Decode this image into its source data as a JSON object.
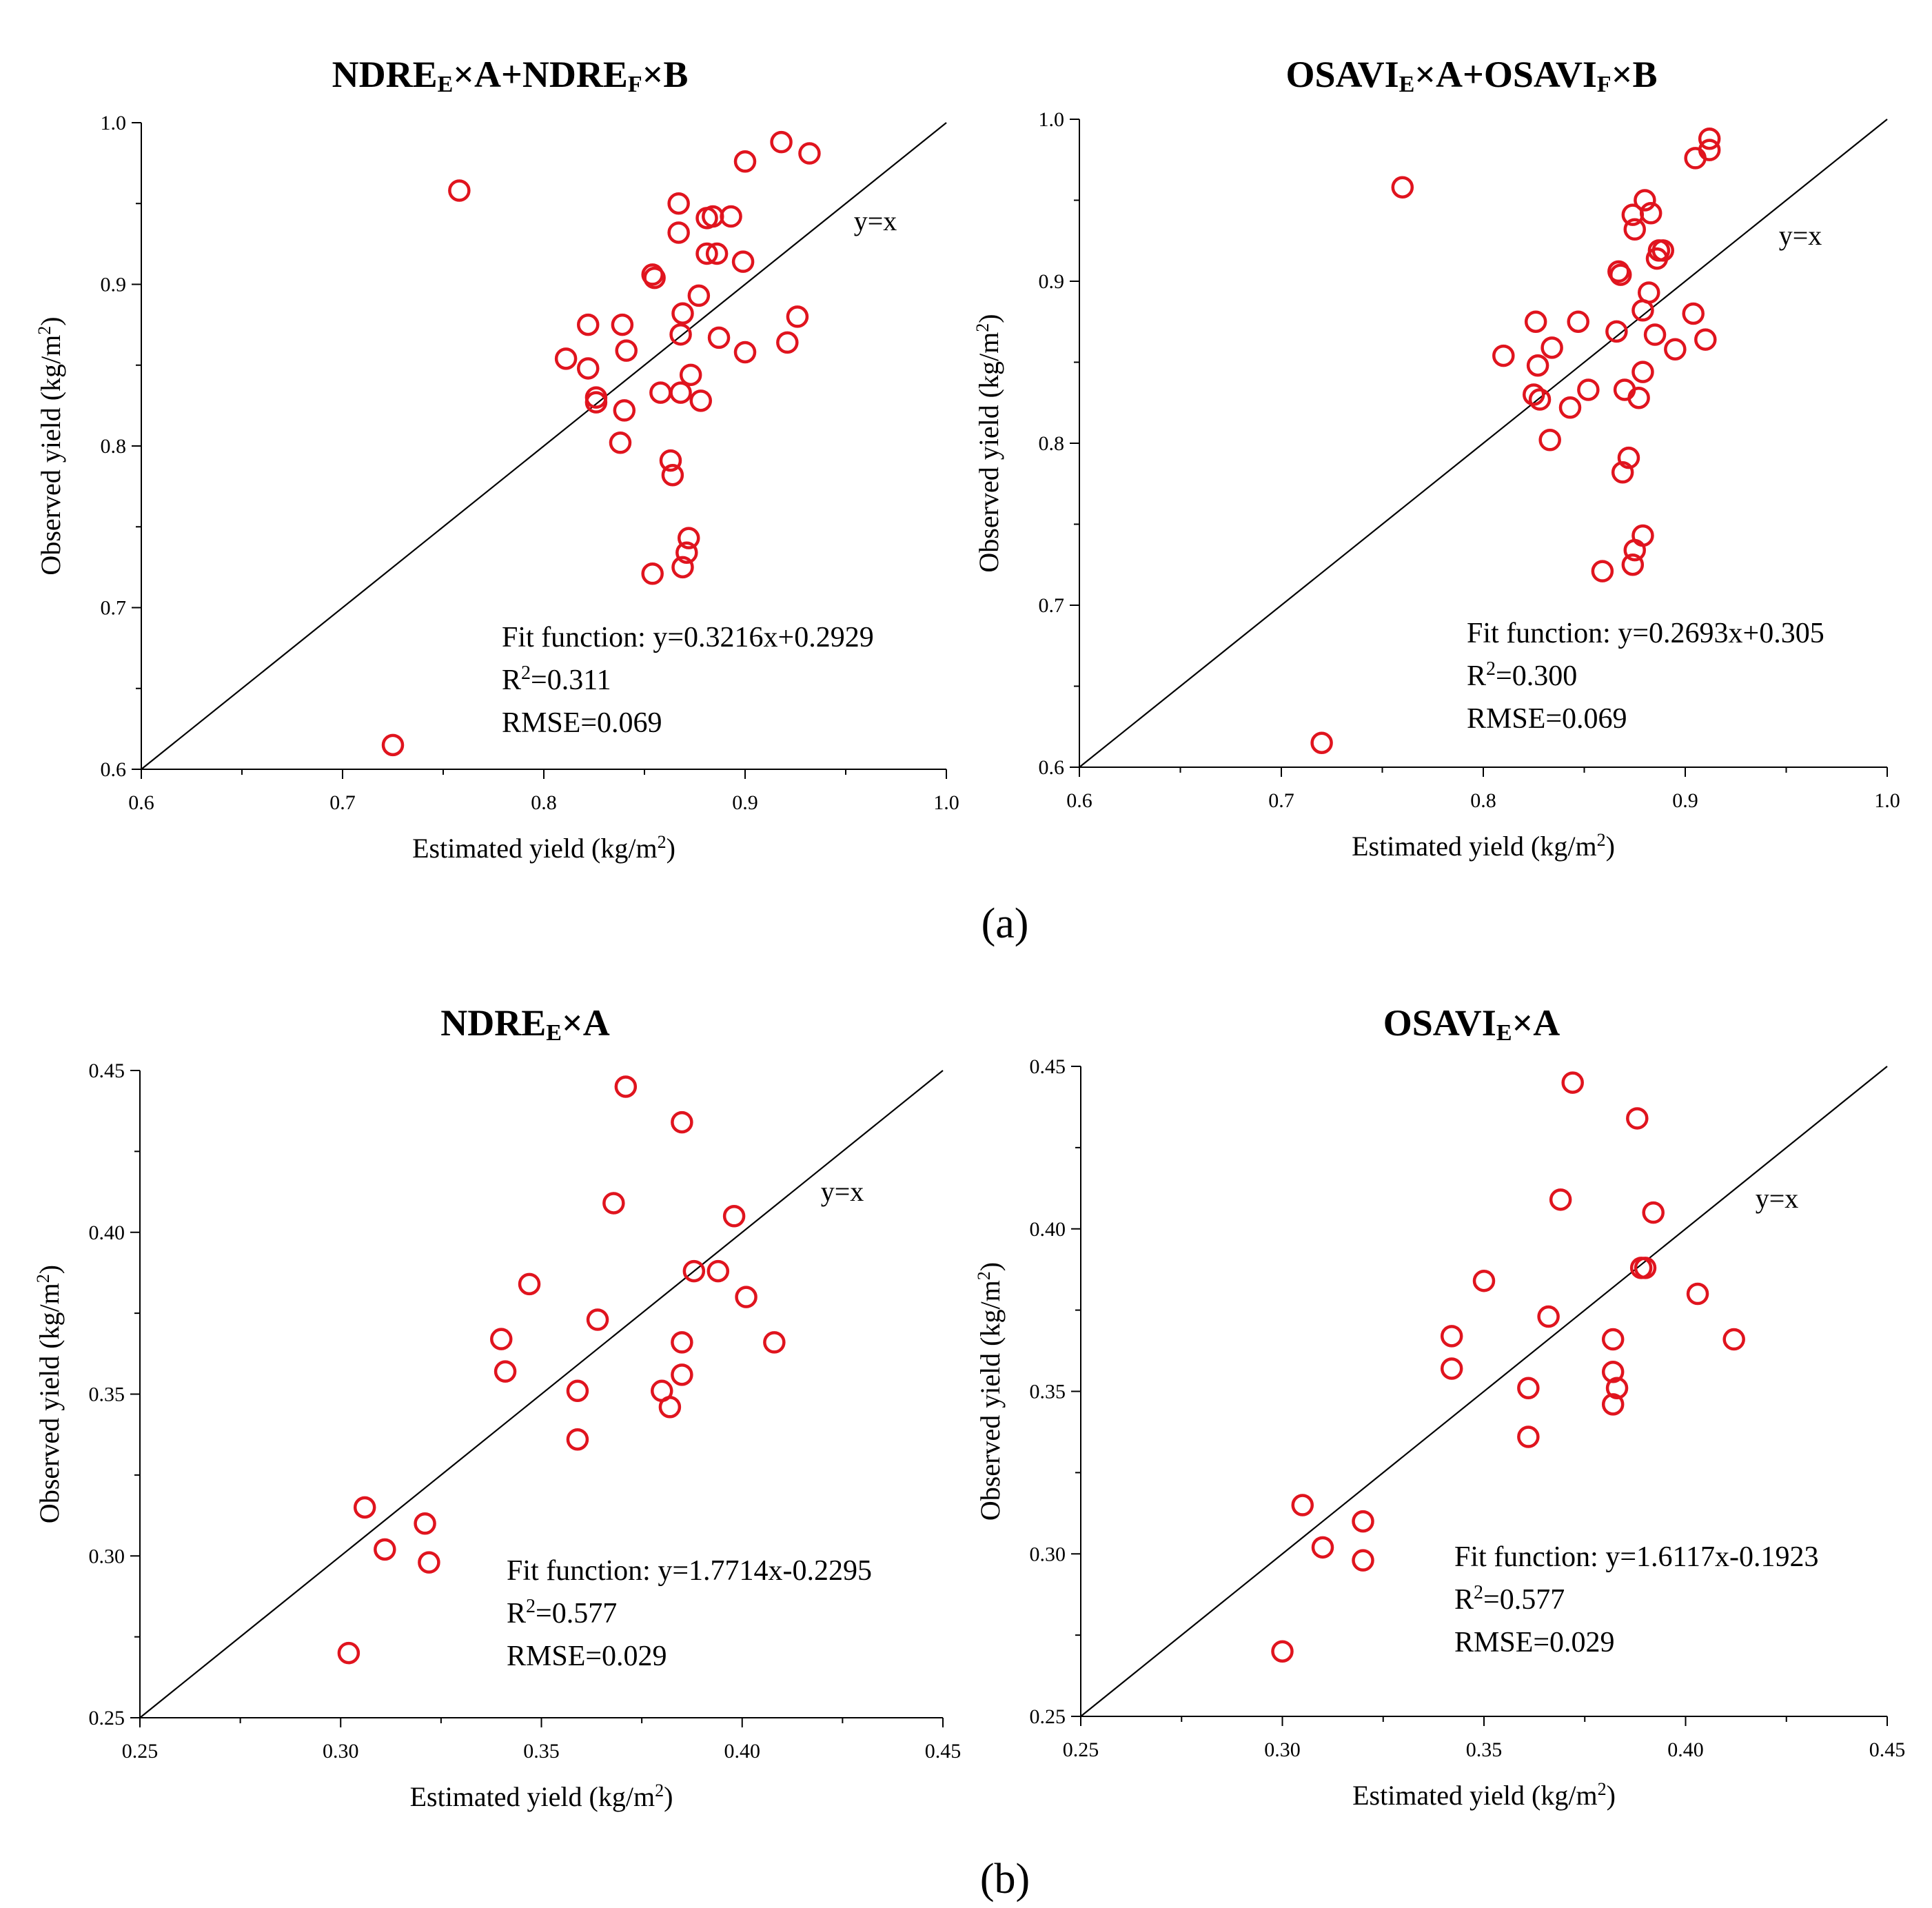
{
  "captions": {
    "a": "(a)",
    "b": "(b)"
  },
  "chart_data": [
    {
      "id": "c1",
      "type": "scatter",
      "title": {
        "main": "NDRE",
        "parts": [
          [
            "NDRE",
            "E"
          ],
          [
            "×A+",
            ""
          ],
          [
            "NDRE",
            "F"
          ],
          [
            "×B",
            ""
          ]
        ]
      },
      "xlabel": "Estimated yield (kg/m2)",
      "ylabel": "Observed yield (kg/m2)",
      "xlim": [
        0.6,
        1.0
      ],
      "ylim": [
        0.6,
        1.0
      ],
      "xticks": [
        0.6,
        0.7,
        0.8,
        0.9,
        1.0
      ],
      "yticks": [
        0.6,
        0.7,
        0.8,
        0.9,
        1.0
      ],
      "xtick_labels": [
        "0.6",
        "0.7",
        "0.8",
        "0.9",
        "1.0"
      ],
      "ytick_labels": [
        "0.6",
        "0.7",
        "0.8",
        "0.9",
        "1.0"
      ],
      "reference_line_label": "y=x",
      "fit_function": "Fit function: y=0.3216x+0.2929",
      "r2": "=0.311",
      "rmse": "RMSE=0.069",
      "x": [
        0.725,
        0.758,
        0.918,
        0.932,
        0.9,
        0.867,
        0.867,
        0.881,
        0.884,
        0.893,
        0.881,
        0.886,
        0.899,
        0.854,
        0.855,
        0.877,
        0.869,
        0.822,
        0.839,
        0.868,
        0.926,
        0.921,
        0.811,
        0.822,
        0.841,
        0.887,
        0.9,
        0.873,
        0.858,
        0.868,
        0.826,
        0.878,
        0.826,
        0.84,
        0.838,
        0.863,
        0.864,
        0.872,
        0.871,
        0.869,
        0.854
      ],
      "y": [
        0.615,
        0.958,
        0.988,
        0.981,
        0.976,
        0.95,
        0.932,
        0.941,
        0.942,
        0.942,
        0.919,
        0.919,
        0.914,
        0.906,
        0.904,
        0.893,
        0.882,
        0.875,
        0.875,
        0.869,
        0.88,
        0.864,
        0.854,
        0.848,
        0.859,
        0.867,
        0.858,
        0.844,
        0.833,
        0.833,
        0.83,
        0.828,
        0.827,
        0.822,
        0.802,
        0.791,
        0.782,
        0.743,
        0.734,
        0.725,
        0.721
      ]
    },
    {
      "id": "c2",
      "type": "scatter",
      "title": {
        "main": "OSAVI",
        "parts": [
          [
            "OSAVI",
            "E"
          ],
          [
            "×A+",
            ""
          ],
          [
            "OSAVI",
            "F"
          ],
          [
            "×B",
            ""
          ]
        ]
      },
      "xlabel": "Estimated yield (kg/m2)",
      "ylabel": "Observed yield (kg/m2)",
      "xlim": [
        0.6,
        1.0
      ],
      "ylim": [
        0.6,
        1.0
      ],
      "xticks": [
        0.6,
        0.7,
        0.8,
        0.9,
        1.0
      ],
      "yticks": [
        0.6,
        0.7,
        0.8,
        0.9,
        1.0
      ],
      "xtick_labels": [
        "0.6",
        "0.7",
        "0.8",
        "0.9",
        "1.0"
      ],
      "ytick_labels": [
        "0.6",
        "0.7",
        "0.8",
        "0.9",
        "1.0"
      ],
      "reference_line_label": "y=x",
      "fit_function": "Fit function: y=0.2693x+0.305",
      "r2": "=0.300",
      "rmse": "RMSE=0.069",
      "x": [
        0.72,
        0.76,
        0.912,
        0.912,
        0.905,
        0.88,
        0.874,
        0.875,
        0.883,
        0.887,
        0.889,
        0.886,
        0.867,
        0.868,
        0.882,
        0.879,
        0.826,
        0.847,
        0.866,
        0.904,
        0.91,
        0.81,
        0.827,
        0.834,
        0.885,
        0.895,
        0.879,
        0.852,
        0.87,
        0.825,
        0.877,
        0.828,
        0.843,
        0.833,
        0.872,
        0.869,
        0.879,
        0.875,
        0.874,
        0.859
      ],
      "y": [
        0.615,
        0.958,
        0.988,
        0.981,
        0.976,
        0.95,
        0.941,
        0.932,
        0.942,
        0.919,
        0.919,
        0.914,
        0.906,
        0.904,
        0.893,
        0.882,
        0.875,
        0.875,
        0.869,
        0.88,
        0.864,
        0.854,
        0.848,
        0.859,
        0.867,
        0.858,
        0.844,
        0.833,
        0.833,
        0.83,
        0.828,
        0.827,
        0.822,
        0.802,
        0.791,
        0.782,
        0.743,
        0.734,
        0.725,
        0.721
      ]
    },
    {
      "id": "c3",
      "type": "scatter",
      "title": {
        "main": "NDRE",
        "parts": [
          [
            "NDRE",
            "E"
          ],
          [
            "×A",
            ""
          ]
        ]
      },
      "xlabel": "Estimated yield (kg/m2)",
      "ylabel": "Observed yield (kg/m2)",
      "xlim": [
        0.25,
        0.45
      ],
      "ylim": [
        0.25,
        0.45
      ],
      "xticks": [
        0.25,
        0.3,
        0.35,
        0.4,
        0.45
      ],
      "yticks": [
        0.25,
        0.3,
        0.35,
        0.4,
        0.45
      ],
      "xtick_labels": [
        "0.25",
        "0.30",
        "0.35",
        "0.40",
        "0.45"
      ],
      "ytick_labels": [
        "0.25",
        "0.30",
        "0.35",
        "0.40",
        "0.45"
      ],
      "reference_line_label": "y=x",
      "fit_function": "Fit function: y=1.7714x-0.2295",
      "r2": "=0.577",
      "rmse": "RMSE=0.029",
      "x": [
        0.302,
        0.306,
        0.311,
        0.321,
        0.322,
        0.34,
        0.341,
        0.347,
        0.359,
        0.359,
        0.364,
        0.368,
        0.371,
        0.38,
        0.382,
        0.385,
        0.385,
        0.385,
        0.388,
        0.394,
        0.398,
        0.401,
        0.408
      ],
      "y": [
        0.27,
        0.315,
        0.302,
        0.31,
        0.298,
        0.367,
        0.357,
        0.384,
        0.336,
        0.351,
        0.373,
        0.409,
        0.445,
        0.351,
        0.346,
        0.434,
        0.366,
        0.356,
        0.388,
        0.388,
        0.405,
        0.38,
        0.366
      ]
    },
    {
      "id": "c4",
      "type": "scatter",
      "title": {
        "main": "OSAVI",
        "parts": [
          [
            "OSAVI",
            "E"
          ],
          [
            "×A",
            ""
          ]
        ]
      },
      "xlabel": "Estimated yield (kg/m2)",
      "ylabel": "Observed yield (kg/m2)",
      "xlim": [
        0.25,
        0.45
      ],
      "ylim": [
        0.25,
        0.45
      ],
      "xticks": [
        0.25,
        0.3,
        0.35,
        0.4,
        0.45
      ],
      "yticks": [
        0.25,
        0.3,
        0.35,
        0.4,
        0.45
      ],
      "xtick_labels": [
        "0.25",
        "0.30",
        "0.35",
        "0.40",
        "0.45"
      ],
      "ytick_labels": [
        "0.25",
        "0.30",
        "0.35",
        "0.40",
        "0.45"
      ],
      "reference_line_label": "y=x",
      "fit_function": "Fit function: y=1.6117x-0.1923",
      "r2": "=0.577",
      "rmse": "RMSE=0.029",
      "x": [
        0.3,
        0.305,
        0.31,
        0.32,
        0.32,
        0.342,
        0.342,
        0.35,
        0.361,
        0.361,
        0.366,
        0.369,
        0.372,
        0.382,
        0.382,
        0.388,
        0.382,
        0.383,
        0.389,
        0.39,
        0.392,
        0.403,
        0.412
      ],
      "y": [
        0.27,
        0.315,
        0.302,
        0.31,
        0.298,
        0.367,
        0.357,
        0.384,
        0.336,
        0.351,
        0.373,
        0.409,
        0.445,
        0.346,
        0.366,
        0.434,
        0.356,
        0.351,
        0.388,
        0.388,
        0.405,
        0.38,
        0.366
      ]
    }
  ]
}
